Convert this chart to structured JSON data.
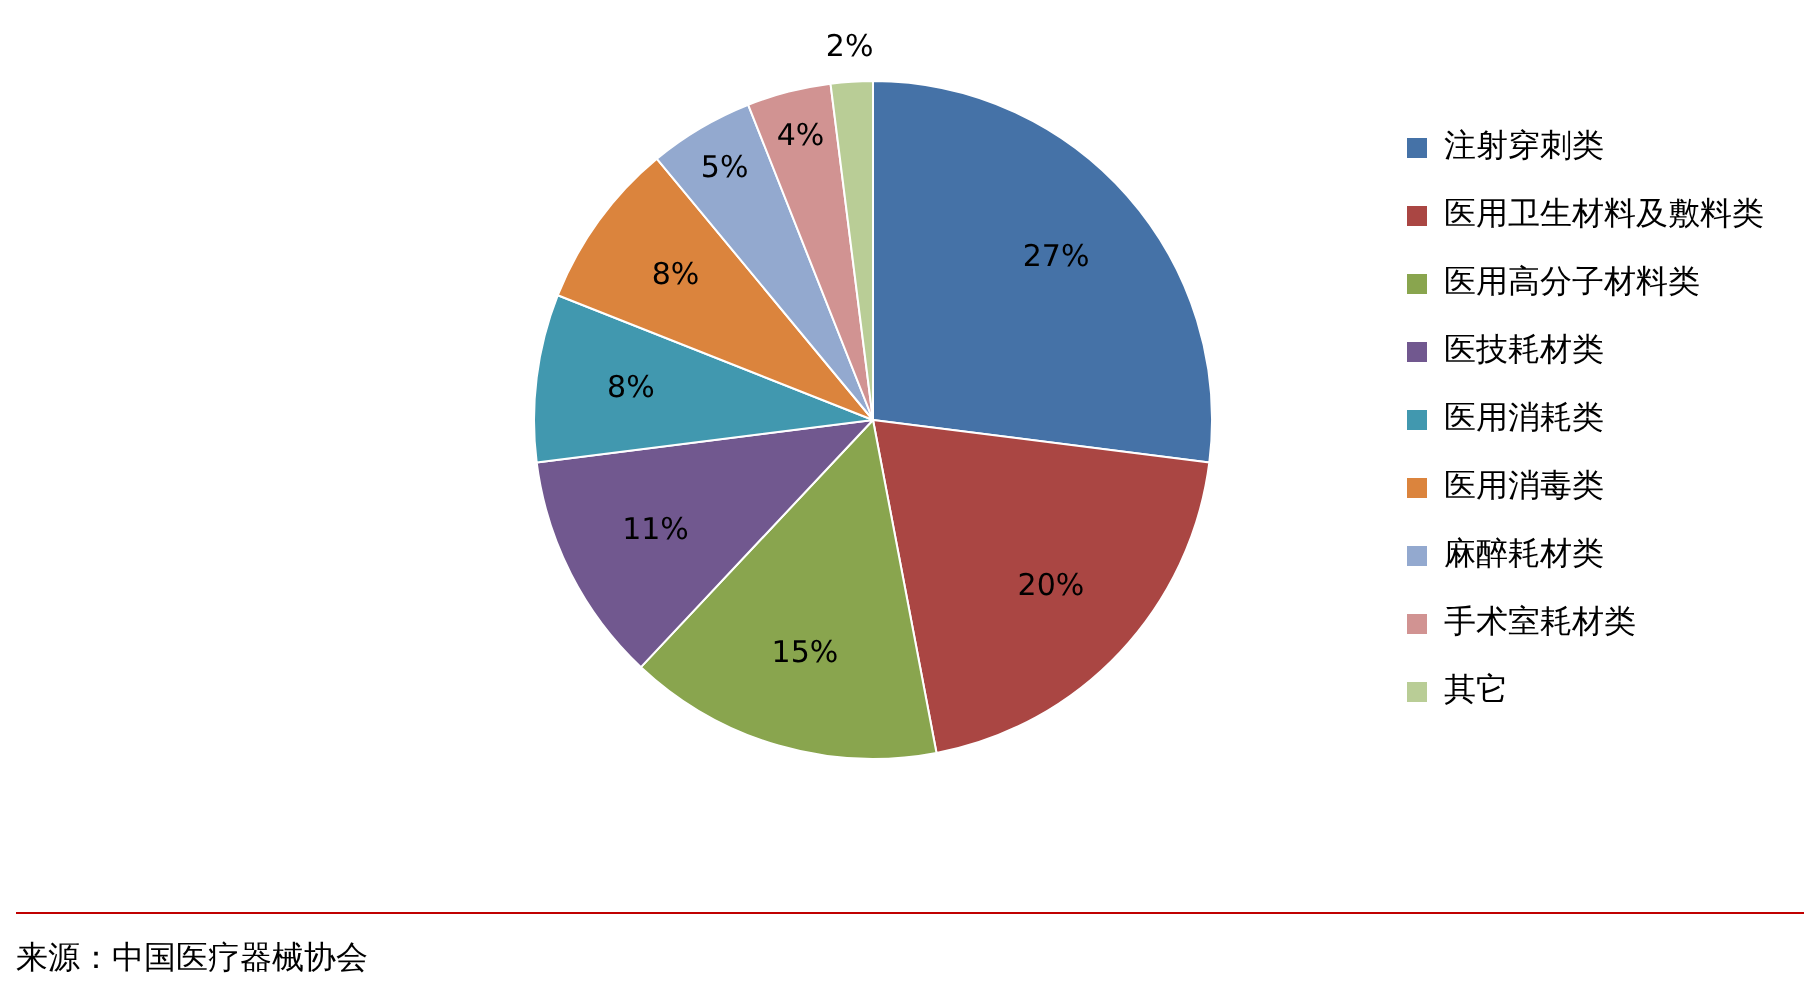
{
  "chart_data": {
    "type": "pie",
    "categories": [
      "注射穿刺类",
      "医用卫生材料及敷料类",
      "医用高分子材料类",
      "医技耗材类",
      "医用消耗类",
      "医用消毒类",
      "麻醉耗材类",
      "手术室耗材类",
      "其它"
    ],
    "values": [
      27,
      20,
      15,
      11,
      8,
      8,
      5,
      4,
      2
    ],
    "colors": [
      "#4572a7",
      "#aa4643",
      "#89a54e",
      "#71588f",
      "#4198af",
      "#db843d",
      "#93a9cf",
      "#d19392",
      "#b9cd96"
    ],
    "value_labels": [
      "27%",
      "20%",
      "15%",
      "11%",
      "8%",
      "8%",
      "5%",
      "4%",
      "2%"
    ],
    "legend": "right",
    "annotations": [
      "来源：中国医疗器械协会"
    ]
  }
}
